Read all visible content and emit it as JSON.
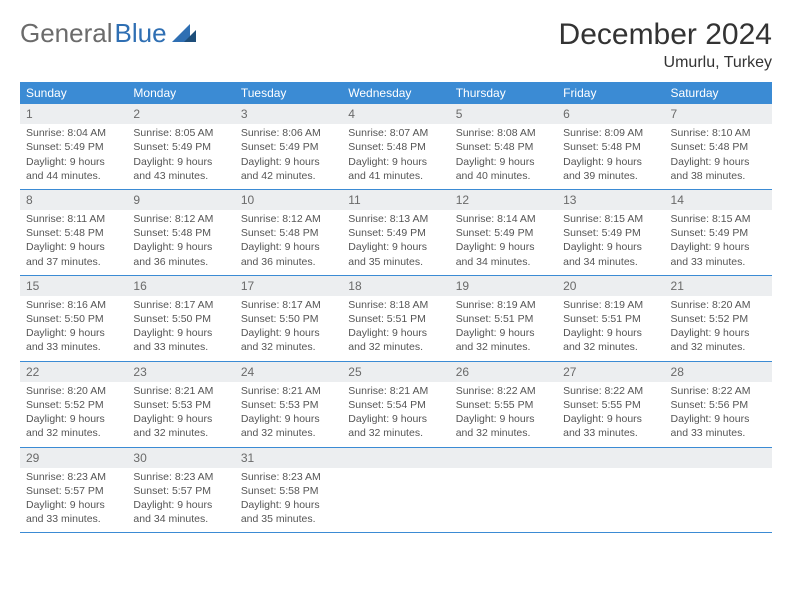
{
  "brand": {
    "part1": "General",
    "part2": "Blue"
  },
  "title": "December 2024",
  "subtitle": "Umurlu, Turkey",
  "colors": {
    "header_bg": "#3b8bd4",
    "header_text": "#ffffff",
    "daynum_bg": "#eceef0",
    "border": "#3b8bd4",
    "logo_gray": "#6b6b6b",
    "logo_blue": "#2f6fb3"
  },
  "day_headers": [
    "Sunday",
    "Monday",
    "Tuesday",
    "Wednesday",
    "Thursday",
    "Friday",
    "Saturday"
  ],
  "weeks": [
    [
      {
        "n": "1",
        "sr": "Sunrise: 8:04 AM",
        "ss": "Sunset: 5:49 PM",
        "dl": "Daylight: 9 hours and 44 minutes."
      },
      {
        "n": "2",
        "sr": "Sunrise: 8:05 AM",
        "ss": "Sunset: 5:49 PM",
        "dl": "Daylight: 9 hours and 43 minutes."
      },
      {
        "n": "3",
        "sr": "Sunrise: 8:06 AM",
        "ss": "Sunset: 5:49 PM",
        "dl": "Daylight: 9 hours and 42 minutes."
      },
      {
        "n": "4",
        "sr": "Sunrise: 8:07 AM",
        "ss": "Sunset: 5:48 PM",
        "dl": "Daylight: 9 hours and 41 minutes."
      },
      {
        "n": "5",
        "sr": "Sunrise: 8:08 AM",
        "ss": "Sunset: 5:48 PM",
        "dl": "Daylight: 9 hours and 40 minutes."
      },
      {
        "n": "6",
        "sr": "Sunrise: 8:09 AM",
        "ss": "Sunset: 5:48 PM",
        "dl": "Daylight: 9 hours and 39 minutes."
      },
      {
        "n": "7",
        "sr": "Sunrise: 8:10 AM",
        "ss": "Sunset: 5:48 PM",
        "dl": "Daylight: 9 hours and 38 minutes."
      }
    ],
    [
      {
        "n": "8",
        "sr": "Sunrise: 8:11 AM",
        "ss": "Sunset: 5:48 PM",
        "dl": "Daylight: 9 hours and 37 minutes."
      },
      {
        "n": "9",
        "sr": "Sunrise: 8:12 AM",
        "ss": "Sunset: 5:48 PM",
        "dl": "Daylight: 9 hours and 36 minutes."
      },
      {
        "n": "10",
        "sr": "Sunrise: 8:12 AM",
        "ss": "Sunset: 5:48 PM",
        "dl": "Daylight: 9 hours and 36 minutes."
      },
      {
        "n": "11",
        "sr": "Sunrise: 8:13 AM",
        "ss": "Sunset: 5:49 PM",
        "dl": "Daylight: 9 hours and 35 minutes."
      },
      {
        "n": "12",
        "sr": "Sunrise: 8:14 AM",
        "ss": "Sunset: 5:49 PM",
        "dl": "Daylight: 9 hours and 34 minutes."
      },
      {
        "n": "13",
        "sr": "Sunrise: 8:15 AM",
        "ss": "Sunset: 5:49 PM",
        "dl": "Daylight: 9 hours and 34 minutes."
      },
      {
        "n": "14",
        "sr": "Sunrise: 8:15 AM",
        "ss": "Sunset: 5:49 PM",
        "dl": "Daylight: 9 hours and 33 minutes."
      }
    ],
    [
      {
        "n": "15",
        "sr": "Sunrise: 8:16 AM",
        "ss": "Sunset: 5:50 PM",
        "dl": "Daylight: 9 hours and 33 minutes."
      },
      {
        "n": "16",
        "sr": "Sunrise: 8:17 AM",
        "ss": "Sunset: 5:50 PM",
        "dl": "Daylight: 9 hours and 33 minutes."
      },
      {
        "n": "17",
        "sr": "Sunrise: 8:17 AM",
        "ss": "Sunset: 5:50 PM",
        "dl": "Daylight: 9 hours and 32 minutes."
      },
      {
        "n": "18",
        "sr": "Sunrise: 8:18 AM",
        "ss": "Sunset: 5:51 PM",
        "dl": "Daylight: 9 hours and 32 minutes."
      },
      {
        "n": "19",
        "sr": "Sunrise: 8:19 AM",
        "ss": "Sunset: 5:51 PM",
        "dl": "Daylight: 9 hours and 32 minutes."
      },
      {
        "n": "20",
        "sr": "Sunrise: 8:19 AM",
        "ss": "Sunset: 5:51 PM",
        "dl": "Daylight: 9 hours and 32 minutes."
      },
      {
        "n": "21",
        "sr": "Sunrise: 8:20 AM",
        "ss": "Sunset: 5:52 PM",
        "dl": "Daylight: 9 hours and 32 minutes."
      }
    ],
    [
      {
        "n": "22",
        "sr": "Sunrise: 8:20 AM",
        "ss": "Sunset: 5:52 PM",
        "dl": "Daylight: 9 hours and 32 minutes."
      },
      {
        "n": "23",
        "sr": "Sunrise: 8:21 AM",
        "ss": "Sunset: 5:53 PM",
        "dl": "Daylight: 9 hours and 32 minutes."
      },
      {
        "n": "24",
        "sr": "Sunrise: 8:21 AM",
        "ss": "Sunset: 5:53 PM",
        "dl": "Daylight: 9 hours and 32 minutes."
      },
      {
        "n": "25",
        "sr": "Sunrise: 8:21 AM",
        "ss": "Sunset: 5:54 PM",
        "dl": "Daylight: 9 hours and 32 minutes."
      },
      {
        "n": "26",
        "sr": "Sunrise: 8:22 AM",
        "ss": "Sunset: 5:55 PM",
        "dl": "Daylight: 9 hours and 32 minutes."
      },
      {
        "n": "27",
        "sr": "Sunrise: 8:22 AM",
        "ss": "Sunset: 5:55 PM",
        "dl": "Daylight: 9 hours and 33 minutes."
      },
      {
        "n": "28",
        "sr": "Sunrise: 8:22 AM",
        "ss": "Sunset: 5:56 PM",
        "dl": "Daylight: 9 hours and 33 minutes."
      }
    ],
    [
      {
        "n": "29",
        "sr": "Sunrise: 8:23 AM",
        "ss": "Sunset: 5:57 PM",
        "dl": "Daylight: 9 hours and 33 minutes."
      },
      {
        "n": "30",
        "sr": "Sunrise: 8:23 AM",
        "ss": "Sunset: 5:57 PM",
        "dl": "Daylight: 9 hours and 34 minutes."
      },
      {
        "n": "31",
        "sr": "Sunrise: 8:23 AM",
        "ss": "Sunset: 5:58 PM",
        "dl": "Daylight: 9 hours and 35 minutes."
      },
      null,
      null,
      null,
      null
    ]
  ]
}
